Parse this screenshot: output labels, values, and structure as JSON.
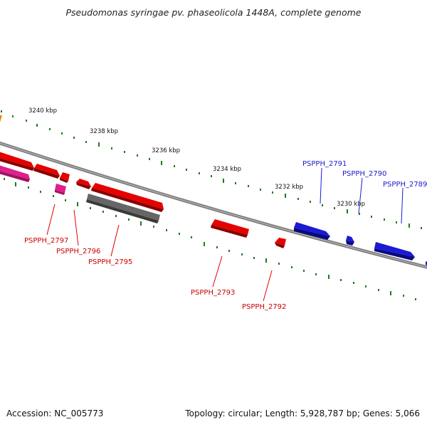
{
  "title": "Pseudomonas syringae pv. phaseolicola 1448A, complete genome",
  "footer": {
    "accession": "Accession: NC_005773",
    "summary": "Topology: circular; Length: 5,928,787 bp; Genes: 5,066"
  },
  "colors": {
    "forward_gene": "#1a1ad8",
    "reverse_gene": "#e60000",
    "pseudo_gene": "#e0208a",
    "other_feature": "#666666",
    "orange_feature": "#ee8800",
    "tick": "#1f7a1f",
    "backbone": "#808080"
  },
  "scale_labels": [
    "3240 kbp",
    "3238 kbp",
    "3236 kbp",
    "3234 kbp",
    "3232 kbp",
    "3230 kbp"
  ],
  "genes": [
    {
      "id": "PSPPH_2797",
      "strand": "reverse"
    },
    {
      "id": "PSPPH_2796",
      "strand": "reverse"
    },
    {
      "id": "PSPPH_2795",
      "strand": "reverse"
    },
    {
      "id": "PSPPH_2793",
      "strand": "reverse"
    },
    {
      "id": "PSPPH_2792",
      "strand": "reverse"
    },
    {
      "id": "PSPPH_2791",
      "strand": "forward"
    },
    {
      "id": "PSPPH_2790",
      "strand": "forward"
    },
    {
      "id": "PSPPH_2789",
      "strand": "forward"
    }
  ]
}
